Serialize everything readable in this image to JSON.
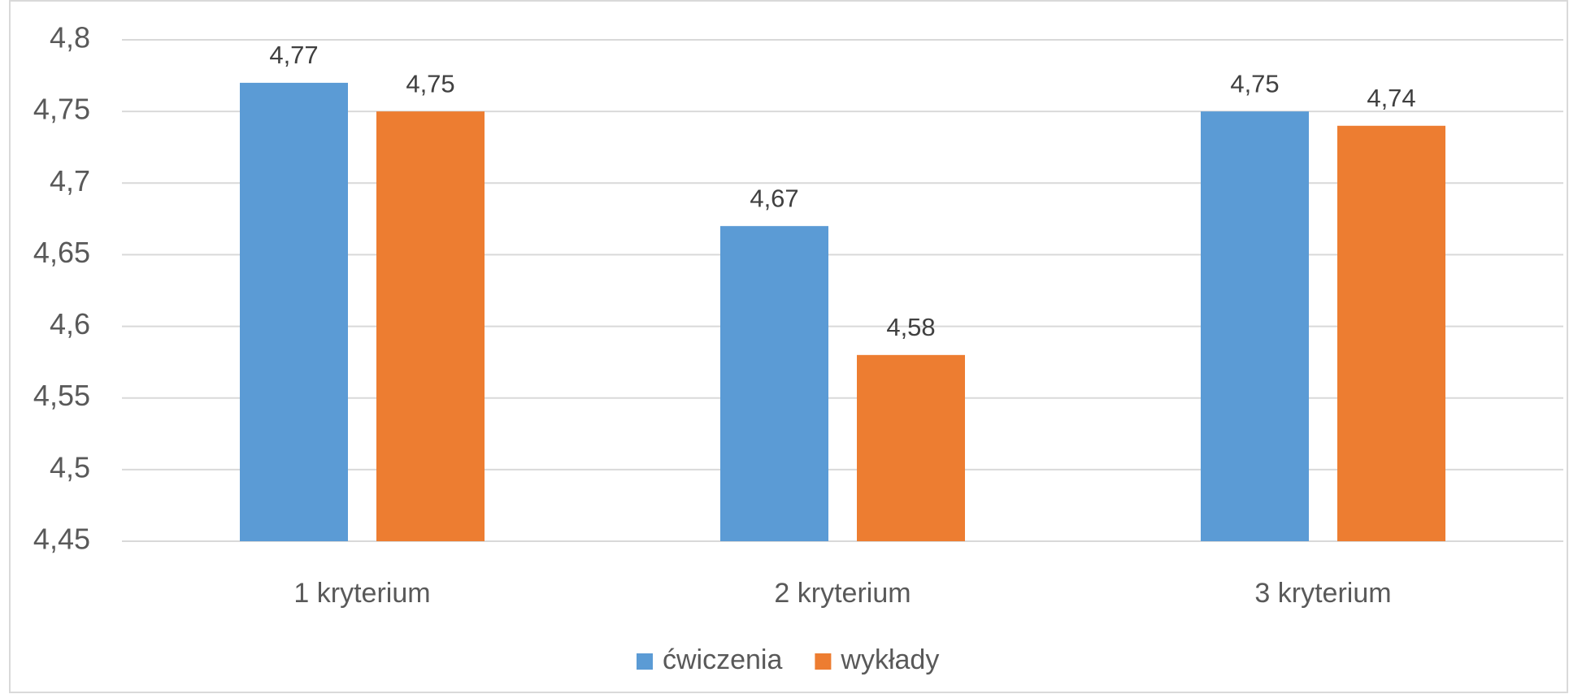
{
  "chart_data": {
    "type": "bar",
    "categories": [
      "1 kryterium",
      "2 kryterium",
      "3 kryterium"
    ],
    "series": [
      {
        "name": "ćwiczenia",
        "color": "#5b9bd5",
        "values": [
          4.77,
          4.67,
          4.75
        ],
        "value_labels": [
          "4,77",
          "4,67",
          "4,75"
        ]
      },
      {
        "name": "wykłady",
        "color": "#ed7d31",
        "values": [
          4.75,
          4.58,
          4.74
        ],
        "value_labels": [
          "4,75",
          "4,58",
          "4,74"
        ]
      }
    ],
    "ylim": [
      4.45,
      4.8
    ],
    "yticks": [
      {
        "value": 4.45,
        "label": "4,45"
      },
      {
        "value": 4.5,
        "label": "4,5"
      },
      {
        "value": 4.55,
        "label": "4,55"
      },
      {
        "value": 4.6,
        "label": "4,6"
      },
      {
        "value": 4.65,
        "label": "4,65"
      },
      {
        "value": 4.7,
        "label": "4,7"
      },
      {
        "value": 4.75,
        "label": "4,75"
      },
      {
        "value": 4.8,
        "label": "4,8"
      }
    ],
    "grid": true,
    "legend": "bottom"
  }
}
